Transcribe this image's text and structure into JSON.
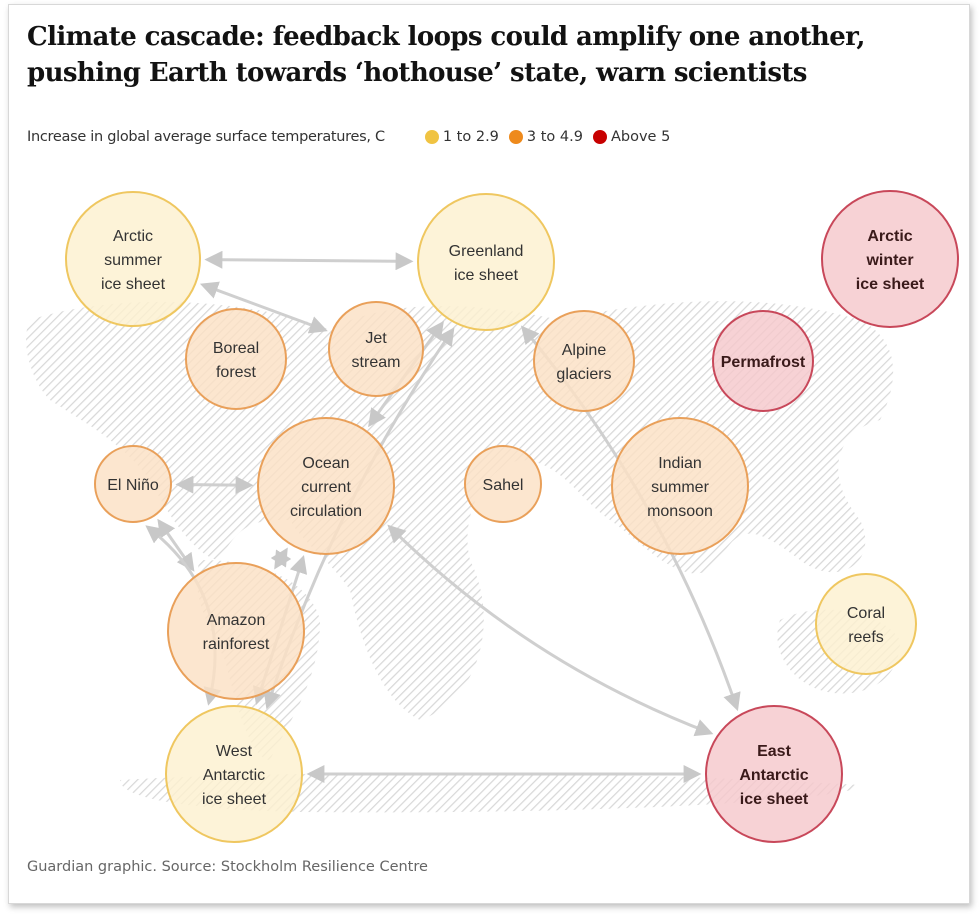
{
  "title": "Climate cascade: feedback loops could amplify one another, pushing Earth towards ‘hothouse’ state, warn scientists",
  "legend": {
    "label": "Increase in global average surface temperatures, C",
    "items": [
      {
        "key": "low",
        "label": "1 to 2.9",
        "color": "#f0c342"
      },
      {
        "key": "mid",
        "label": "3 to 4.9",
        "color": "#ee8a1c"
      },
      {
        "key": "high",
        "label": "Above 5",
        "color": "#c70000"
      }
    ]
  },
  "fills": {
    "low": "#fdf0d0",
    "mid": "#fbe0c4",
    "high": "#f5c8cc"
  },
  "strokes": {
    "low": "#efc760",
    "mid": "#e9a05a",
    "high": "#c8485a"
  },
  "nodes": [
    {
      "id": "arctic-summer",
      "lines": [
        "Arctic",
        "summer",
        "ice sheet"
      ],
      "level": "low"
    },
    {
      "id": "greenland",
      "lines": [
        "Greenland",
        "ice sheet"
      ],
      "level": "low"
    },
    {
      "id": "arctic-winter",
      "lines": [
        "Arctic",
        "winter",
        "ice sheet"
      ],
      "level": "high"
    },
    {
      "id": "boreal",
      "lines": [
        "Boreal",
        "forest"
      ],
      "level": "mid"
    },
    {
      "id": "jet",
      "lines": [
        "Jet",
        "stream"
      ],
      "level": "mid"
    },
    {
      "id": "alpine",
      "lines": [
        "Alpine",
        "glaciers"
      ],
      "level": "mid"
    },
    {
      "id": "permafrost",
      "lines": [
        "Permafrost"
      ],
      "level": "high"
    },
    {
      "id": "elnino",
      "lines": [
        "El Niño"
      ],
      "level": "mid"
    },
    {
      "id": "ocean",
      "lines": [
        "Ocean",
        "current",
        "circulation"
      ],
      "level": "mid"
    },
    {
      "id": "sahel",
      "lines": [
        "Sahel"
      ],
      "level": "mid"
    },
    {
      "id": "monsoon",
      "lines": [
        "Indian",
        "summer",
        "monsoon"
      ],
      "level": "mid"
    },
    {
      "id": "amazon",
      "lines": [
        "Amazon",
        "rainforest"
      ],
      "level": "mid"
    },
    {
      "id": "coral",
      "lines": [
        "Coral",
        "reefs"
      ],
      "level": "low"
    },
    {
      "id": "west-antarctic",
      "lines": [
        "West",
        "Antarctic",
        "ice sheet"
      ],
      "level": "low"
    },
    {
      "id": "east-antarctic",
      "lines": [
        "East",
        "Antarctic",
        "ice sheet"
      ],
      "level": "high"
    }
  ],
  "links": [
    [
      "arctic-summer",
      "greenland"
    ],
    [
      "arctic-summer",
      "jet"
    ],
    [
      "elnino",
      "ocean"
    ],
    [
      "elnino",
      "amazon"
    ],
    [
      "elnino",
      "west-antarctic"
    ],
    [
      "ocean",
      "greenland"
    ],
    [
      "ocean",
      "amazon"
    ],
    [
      "ocean",
      "west-antarctic"
    ],
    [
      "greenland",
      "west-antarctic"
    ],
    [
      "greenland",
      "east-antarctic"
    ],
    [
      "ocean",
      "east-antarctic"
    ],
    [
      "west-antarctic",
      "east-antarctic"
    ]
  ],
  "footer": "Guardian graphic. Source: Stockholm Resilience Centre"
}
